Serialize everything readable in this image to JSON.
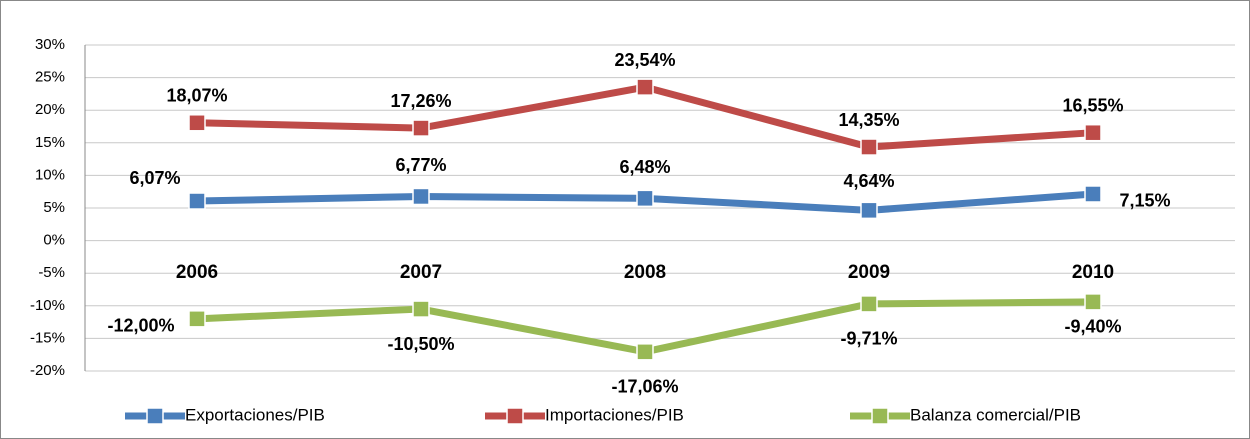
{
  "chart_data": {
    "type": "line",
    "categories": [
      "2006",
      "2007",
      "2008",
      "2009",
      "2010"
    ],
    "series": [
      {
        "name": "Exportaciones/PIB",
        "color": "#4a7ebb",
        "label_color": "#2e75b6",
        "values": [
          6.07,
          6.77,
          6.48,
          4.64,
          7.15
        ],
        "value_labels": [
          "6,07%",
          "6,77%",
          "6,48%",
          "4,64%",
          "7,15%"
        ]
      },
      {
        "name": "Importaciones/PIB",
        "color": "#be4b48",
        "label_color": "#c00000",
        "values": [
          18.07,
          17.26,
          23.54,
          14.35,
          16.55
        ],
        "value_labels": [
          "18,07%",
          "17,26%",
          "23,54%",
          "14,35%",
          "16,55%"
        ]
      },
      {
        "name": "Balanza comercial/PIB",
        "color": "#98b954",
        "label_color": "#4f6228",
        "values": [
          -12.0,
          -10.5,
          -17.06,
          -9.71,
          -9.4
        ],
        "value_labels": [
          "-12,00%",
          "-10,50%",
          "-17,06%",
          "-9,71%",
          "-9,40%"
        ]
      }
    ],
    "ylim": [
      -20,
      30
    ],
    "yticks": [
      {
        "value": -20,
        "label": "-20%"
      },
      {
        "value": -15,
        "label": "-15%"
      },
      {
        "value": -10,
        "label": "-10%"
      },
      {
        "value": -5,
        "label": "-5%"
      },
      {
        "value": 0,
        "label": "0%"
      },
      {
        "value": 5,
        "label": "5%"
      },
      {
        "value": 10,
        "label": "10%"
      },
      {
        "value": 15,
        "label": "15%"
      },
      {
        "value": 20,
        "label": "20%"
      },
      {
        "value": 25,
        "label": "25%"
      },
      {
        "value": 30,
        "label": "30%"
      }
    ],
    "grid": true,
    "legend": "bottom"
  }
}
